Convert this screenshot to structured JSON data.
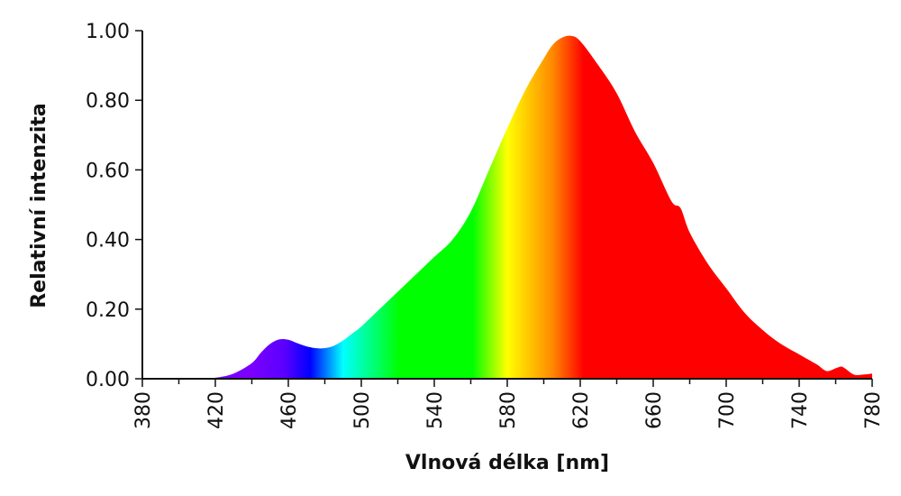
{
  "chart_data": {
    "type": "area",
    "xlabel": "Vlnová délka [nm]",
    "ylabel": "Relativní intenzita",
    "xlim": [
      380,
      780
    ],
    "ylim": [
      0,
      1.0
    ],
    "x_ticks": [
      380,
      420,
      460,
      500,
      540,
      580,
      620,
      660,
      700,
      740,
      780
    ],
    "y_ticks": [
      "0.00",
      "0.20",
      "0.40",
      "0.60",
      "0.80",
      "1.00"
    ],
    "grid": false,
    "fill": "visible spectrum gradient",
    "x": [
      380,
      390,
      400,
      410,
      420,
      430,
      440,
      445,
      450,
      455,
      460,
      465,
      470,
      475,
      480,
      485,
      490,
      495,
      500,
      510,
      520,
      530,
      540,
      550,
      560,
      570,
      580,
      590,
      600,
      605,
      610,
      615,
      620,
      630,
      640,
      650,
      660,
      670,
      675,
      680,
      690,
      700,
      710,
      720,
      730,
      740,
      745,
      750,
      755,
      760,
      763,
      765,
      770,
      775,
      780
    ],
    "y": [
      0.0,
      0.0,
      0.0,
      0.001,
      0.003,
      0.015,
      0.045,
      0.075,
      0.1,
      0.113,
      0.112,
      0.102,
      0.093,
      0.088,
      0.088,
      0.095,
      0.11,
      0.13,
      0.15,
      0.2,
      0.25,
      0.3,
      0.35,
      0.4,
      0.48,
      0.6,
      0.72,
      0.83,
      0.92,
      0.96,
      0.98,
      0.985,
      0.97,
      0.9,
      0.82,
      0.71,
      0.62,
      0.51,
      0.49,
      0.42,
      0.33,
      0.26,
      0.19,
      0.14,
      0.1,
      0.07,
      0.055,
      0.04,
      0.022,
      0.03,
      0.035,
      0.03,
      0.012,
      0.012,
      0.015
    ],
    "gradient_stops": [
      {
        "wavelength": 440,
        "color": "#7a00ff"
      },
      {
        "wavelength": 458,
        "color": "#5a00ff"
      },
      {
        "wavelength": 472,
        "color": "#0000ff"
      },
      {
        "wavelength": 490,
        "color": "#00ffff"
      },
      {
        "wavelength": 521,
        "color": "#00ff00"
      },
      {
        "wavelength": 561,
        "color": "#00ff00"
      },
      {
        "wavelength": 580,
        "color": "#ffff00"
      },
      {
        "wavelength": 605,
        "color": "#ff8800"
      },
      {
        "wavelength": 622,
        "color": "#ff0000"
      },
      {
        "wavelength": 780,
        "color": "#ff0000"
      }
    ]
  }
}
